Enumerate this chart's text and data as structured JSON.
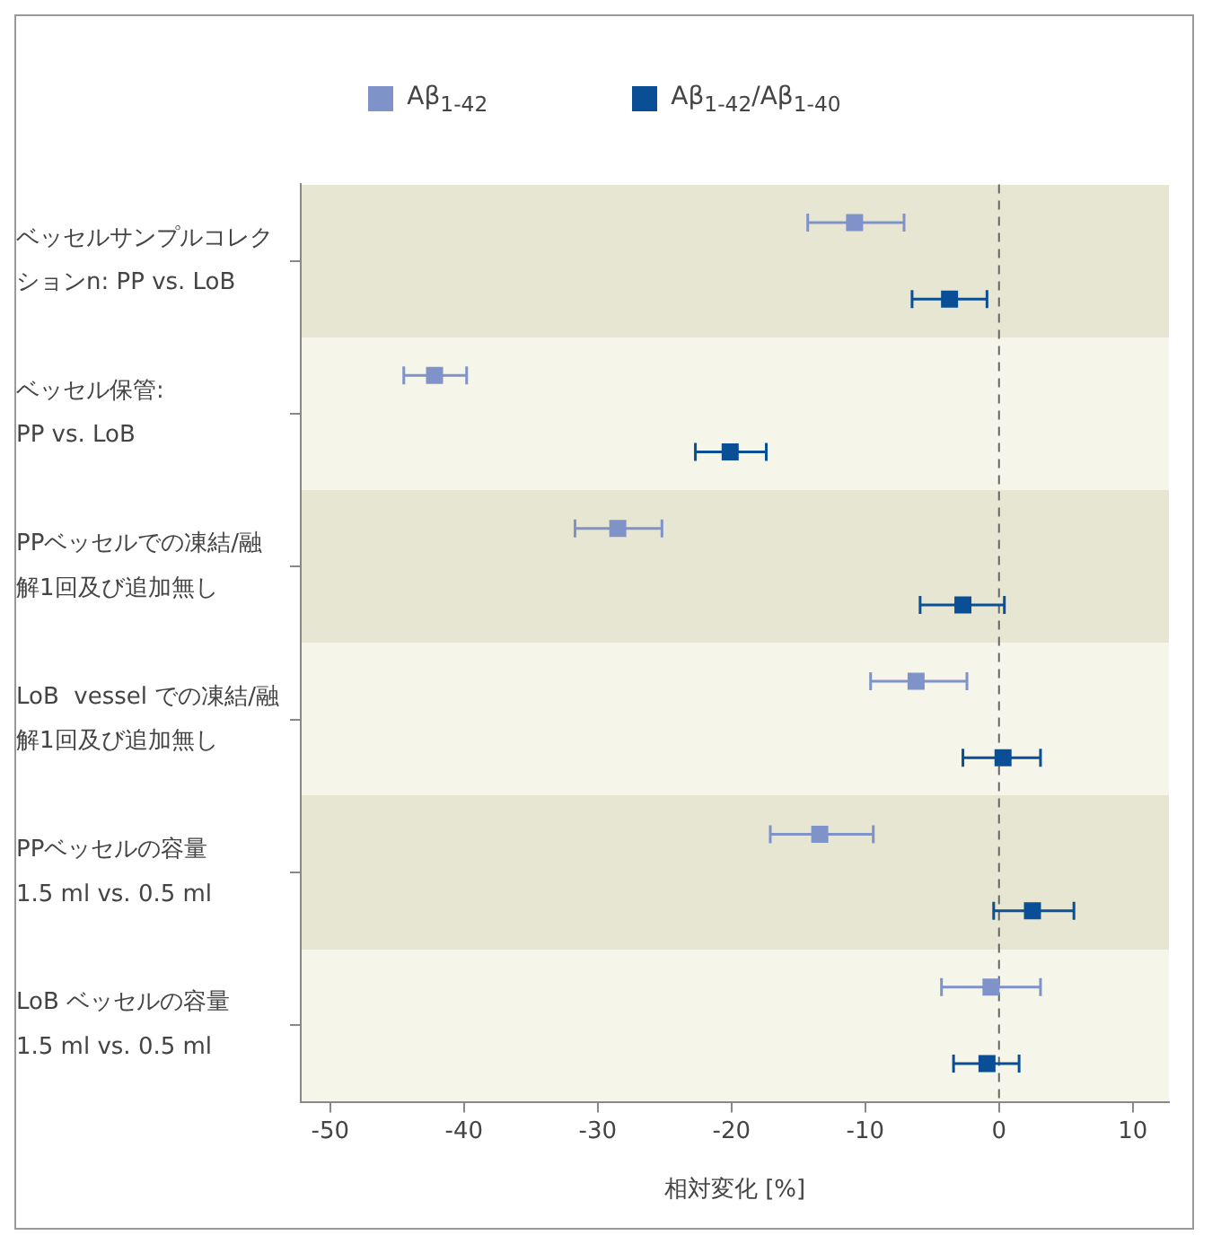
{
  "chart_data": {
    "type": "scatter",
    "orientation": "horizontal",
    "xlabel": "相対変化 [%]",
    "categories": [
      "ベッセルサンプルコレクションn: PP vs. LoB",
      "ベッセル保管:\nPP vs. LoB",
      "PPベッセルでの凍結/融解1回及び追加無し",
      "LoB  vessel での凍結/融解1回及び追加無し",
      "PPベッセルの容量\n1.5 ml vs. 0.5 ml",
      "LoB ベッセルの容量\n1.5 ml vs. 0.5 ml"
    ],
    "series": [
      {
        "name": "Aβ$_{1-42}$",
        "color": "#7f93c9",
        "values": [
          -10.8,
          -42.2,
          -28.5,
          -6.2,
          -13.4,
          -0.6
        ],
        "errors": [
          [
            -14.3,
            -7.1
          ],
          [
            -44.5,
            -39.8
          ],
          [
            -31.7,
            -25.2
          ],
          [
            -9.6,
            -2.4
          ],
          [
            -17.1,
            -9.4
          ],
          [
            -4.3,
            3.1
          ]
        ]
      },
      {
        "name": "Aβ$_{1-42}$/Aβ$_{1-40}$",
        "color": "#0a4f96",
        "values": [
          -3.7,
          -20.1,
          -2.7,
          0.3,
          2.5,
          -0.9
        ],
        "errors": [
          [
            -6.5,
            -0.9
          ],
          [
            -22.7,
            -17.4
          ],
          [
            -5.9,
            0.4
          ],
          [
            -2.7,
            3.1
          ],
          [
            -0.4,
            5.6
          ],
          [
            -3.4,
            1.5
          ]
        ]
      }
    ],
    "xlim": [
      -52.2,
      12.7
    ],
    "xticks": [
      -50,
      -40,
      -30,
      -20,
      -10,
      0,
      10
    ],
    "ref_lines": [
      {
        "axis": "x",
        "value": 0,
        "color": "#666666",
        "line_style": "dashed"
      }
    ],
    "grid": false,
    "legend": "top",
    "marker": "square"
  }
}
